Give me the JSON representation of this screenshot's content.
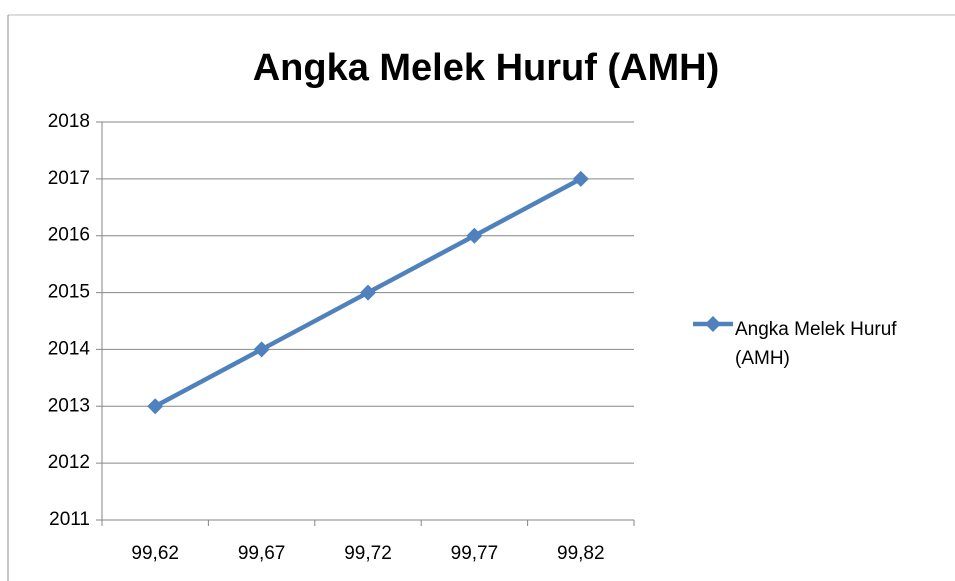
{
  "chart_data": {
    "type": "line",
    "title": "Angka Melek Huruf (AMH)",
    "categories": [
      "99,62",
      "99,67",
      "99,72",
      "99,77",
      "99,82"
    ],
    "series": [
      {
        "name": "Angka Melek Huruf (AMH)",
        "color": "#4f81bd",
        "values": [
          2013,
          2014,
          2015,
          2016,
          2017
        ]
      }
    ],
    "ylim": [
      2011,
      2018
    ],
    "yticks": [
      2011,
      2012,
      2013,
      2014,
      2015,
      2016,
      2017,
      2018
    ],
    "grid": true,
    "legend": "right"
  }
}
